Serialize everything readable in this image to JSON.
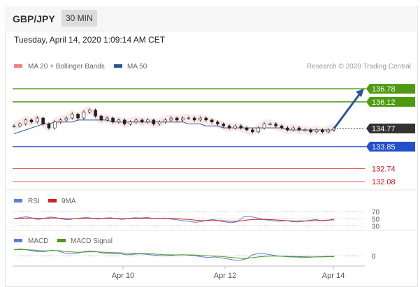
{
  "header": {
    "symbol": "GBP/JPY",
    "period": "30 MIN"
  },
  "timestamp": "Tuesday, April 14, 2020 1:09:14 AM CET",
  "colors": {
    "ma20": "#f08080",
    "ma50": "#2b5597",
    "resistance": "#4d9a0f",
    "support": "#2150c8",
    "projection": "#2b5597",
    "red_level": "#e33b3b"
  },
  "chart_data": [
    {
      "type": "line",
      "name": "price",
      "legend": [
        {
          "label": "MA 20 + Bollinger Bands",
          "color": "#f08080"
        },
        {
          "label": "MA 50",
          "color": "#2b5597"
        }
      ],
      "copyright": "Research © 2020 Trading Central",
      "x_ticks": [
        "Apr 10",
        "Apr 12",
        "Apr 14"
      ],
      "ylim": [
        131.8,
        137.6
      ],
      "price_series": [
        134.9,
        135.0,
        135.2,
        135.1,
        135.3,
        135.0,
        134.8,
        135.1,
        135.2,
        135.3,
        135.5,
        135.3,
        135.6,
        135.7,
        135.4,
        135.2,
        135.3,
        135.1,
        135.2,
        135.0,
        135.1,
        135.2,
        135.1,
        135.2,
        135.0,
        135.1,
        135.2,
        135.3,
        135.2,
        135.3,
        135.3,
        135.2,
        135.3,
        135.2,
        135.1,
        135.0,
        134.9,
        134.8,
        134.9,
        134.8,
        134.7,
        134.6,
        134.8,
        135.0,
        135.0,
        134.9,
        134.8,
        134.7,
        134.8,
        134.7,
        134.7,
        134.6,
        134.7,
        134.6,
        134.7,
        134.8
      ],
      "ma50_series": [
        134.5,
        134.6,
        134.7,
        134.8,
        134.9,
        135.0,
        135.0,
        135.1,
        135.1,
        135.1,
        135.1,
        135.2,
        135.2,
        135.2,
        135.2,
        135.2,
        135.2,
        135.1,
        135.1,
        135.1,
        135.1,
        135.1,
        135.1,
        135.1,
        135.1,
        135.1,
        135.1,
        135.1,
        135.1,
        135.1,
        135.0,
        135.0,
        135.0,
        134.9,
        134.9,
        134.9,
        134.8,
        134.8,
        134.8,
        134.8,
        134.8,
        134.8,
        134.8,
        134.8,
        134.8,
        134.8,
        134.8,
        134.7,
        134.7,
        134.7,
        134.7,
        134.7,
        134.7,
        134.7,
        134.7,
        134.7
      ],
      "levels": [
        {
          "value": 136.78,
          "label": "136.78",
          "kind": "resistance"
        },
        {
          "value": 136.12,
          "label": "136.12",
          "kind": "resistance"
        },
        {
          "value": 134.77,
          "label": "134.77",
          "kind": "last"
        },
        {
          "value": 133.85,
          "label": "133.85",
          "kind": "support"
        },
        {
          "value": 132.74,
          "label": "132.74",
          "kind": "red"
        },
        {
          "value": 132.08,
          "label": "132.08",
          "kind": "red"
        }
      ],
      "projection": {
        "from": 134.77,
        "to": 136.78
      }
    },
    {
      "type": "line",
      "name": "rsi",
      "legend": [
        {
          "label": "RSI",
          "color": "#5b7fd6"
        },
        {
          "label": "9MA",
          "color": "#d42020"
        }
      ],
      "ylim": [
        25,
        80
      ],
      "y_ticks": [
        "70",
        "50",
        "30"
      ],
      "tick_values": [
        70,
        50,
        30
      ],
      "rsi_series": [
        50,
        53,
        56,
        52,
        48,
        51,
        55,
        53,
        49,
        47,
        50,
        52,
        54,
        51,
        49,
        52,
        53,
        50,
        48,
        51,
        53,
        52,
        54,
        51,
        50,
        52,
        49,
        47,
        45,
        43,
        40,
        42,
        46,
        48,
        44,
        41,
        39,
        42,
        55,
        57,
        53,
        50,
        46,
        44,
        43,
        45,
        42,
        41,
        43,
        46,
        48,
        44,
        46,
        49
      ],
      "ma9_series": [
        50,
        51,
        52,
        52,
        51,
        51,
        52,
        52,
        51,
        50,
        50,
        51,
        51,
        51,
        51,
        51,
        51,
        51,
        50,
        51,
        51,
        51,
        52,
        51,
        51,
        51,
        51,
        50,
        49,
        48,
        46,
        45,
        45,
        45,
        45,
        44,
        43,
        43,
        45,
        47,
        48,
        48,
        48,
        47,
        46,
        45,
        44,
        44,
        44,
        44,
        45,
        45,
        46,
        47
      ]
    },
    {
      "type": "line",
      "name": "macd",
      "legend": [
        {
          "label": "MACD",
          "color": "#5b7fd6"
        },
        {
          "label": "MACD Signal",
          "color": "#4d9a0f"
        }
      ],
      "ylim": [
        -0.4,
        0.5
      ],
      "y_ticks": [
        "0"
      ],
      "tick_values": [
        0
      ],
      "macd_series": [
        0.3,
        0.35,
        0.3,
        0.25,
        0.2,
        0.22,
        0.28,
        0.25,
        0.15,
        0.1,
        0.12,
        0.2,
        0.25,
        0.22,
        0.15,
        0.1,
        0.12,
        0.1,
        0.05,
        0.08,
        0.1,
        0.08,
        0.05,
        0.02,
        0.0,
        0.02,
        0.05,
        0.06,
        0.03,
        0.0,
        -0.05,
        -0.08,
        -0.05,
        -0.1,
        -0.15,
        -0.2,
        -0.22,
        -0.15,
        0.05,
        0.12,
        0.1,
        0.05,
        0.0,
        -0.03,
        -0.05,
        -0.06,
        -0.08,
        -0.07,
        -0.05,
        -0.04,
        -0.03,
        -0.02
      ],
      "signal_series": [
        0.3,
        0.32,
        0.31,
        0.29,
        0.26,
        0.25,
        0.26,
        0.26,
        0.23,
        0.2,
        0.18,
        0.19,
        0.2,
        0.2,
        0.19,
        0.17,
        0.16,
        0.15,
        0.13,
        0.12,
        0.12,
        0.11,
        0.1,
        0.08,
        0.06,
        0.05,
        0.05,
        0.05,
        0.05,
        0.04,
        0.02,
        0.0,
        -0.01,
        -0.03,
        -0.06,
        -0.09,
        -0.12,
        -0.13,
        -0.09,
        -0.05,
        -0.02,
        -0.01,
        -0.01,
        -0.02,
        -0.03,
        -0.03,
        -0.04,
        -0.05,
        -0.05,
        -0.05,
        -0.04,
        -0.04
      ]
    }
  ]
}
